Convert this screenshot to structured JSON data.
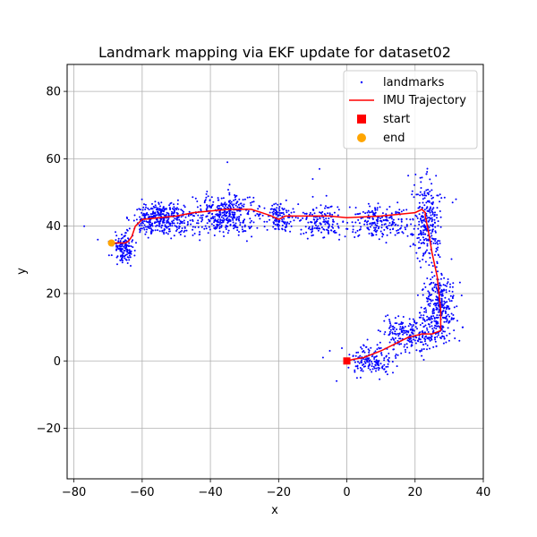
{
  "chart_data": {
    "type": "scatter",
    "title": "Landmark mapping via EKF update for dataset02",
    "xlabel": "x",
    "ylabel": "y",
    "xlim": [
      -82,
      40
    ],
    "ylim": [
      -35,
      88
    ],
    "xticks": [
      -80,
      -60,
      -40,
      -20,
      0,
      20,
      40
    ],
    "yticks": [
      -20,
      0,
      20,
      40,
      60,
      80
    ],
    "grid": true,
    "legend_position": "top-right",
    "series": [
      {
        "name": "landmarks",
        "kind": "scatter",
        "color": "#0000ff",
        "clusters": [
          {
            "x": [
              -69,
              -62
            ],
            "y": [
              29,
              38
            ],
            "count": 140
          },
          {
            "x": [
              -63,
              -45
            ],
            "y": [
              37,
              47
            ],
            "count": 380
          },
          {
            "x": [
              -45,
              -25
            ],
            "y": [
              37,
              50
            ],
            "count": 360
          },
          {
            "x": [
              -25,
              -15
            ],
            "y": [
              38,
              47
            ],
            "count": 120
          },
          {
            "x": [
              -15,
              0
            ],
            "y": [
              36,
              47
            ],
            "count": 150
          },
          {
            "x": [
              0,
              20
            ],
            "y": [
              36,
              47
            ],
            "count": 200
          },
          {
            "x": [
              19,
              28
            ],
            "y": [
              28,
              55
            ],
            "count": 260
          },
          {
            "x": [
              22,
              32
            ],
            "y": [
              5,
              28
            ],
            "count": 300
          },
          {
            "x": [
              10,
              28
            ],
            "y": [
              2,
              14
            ],
            "count": 230
          },
          {
            "x": [
              0,
              14
            ],
            "y": [
              -5,
              5
            ],
            "count": 150
          }
        ],
        "outliers": [
          [
            -77,
            40
          ],
          [
            -35,
            59
          ],
          [
            -8,
            57
          ],
          [
            -10,
            54
          ],
          [
            -6,
            49
          ],
          [
            18,
            55
          ],
          [
            31,
            47
          ],
          [
            32,
            48
          ],
          [
            34,
            10
          ],
          [
            -5,
            3
          ],
          [
            -7,
            1
          ],
          [
            -3,
            -6
          ],
          [
            33,
            6
          ],
          [
            30,
            6
          ],
          [
            -73,
            36
          ],
          [
            -66,
            30
          ]
        ]
      },
      {
        "name": "IMU Trajectory",
        "kind": "line",
        "color": "#ff0000",
        "x": [
          0,
          2,
          5,
          10,
          14,
          18,
          22,
          25,
          27.5,
          27.5,
          26.5,
          25,
          24,
          23,
          23,
          22,
          20,
          10,
          0,
          -5,
          -10,
          -15,
          -18,
          -20,
          -22,
          -25,
          -28,
          -30,
          -35,
          -40,
          -45,
          -50,
          -55,
          -60,
          -62,
          -63,
          -64,
          -65,
          -67,
          -69
        ],
        "y": [
          0,
          0.5,
          1,
          3,
          5,
          7,
          8,
          8,
          9,
          15,
          25,
          32,
          38,
          43,
          44,
          45,
          44,
          43,
          42.5,
          43,
          43,
          43,
          43,
          42,
          43,
          44,
          45,
          45,
          45,
          44.5,
          44,
          43,
          42.5,
          42,
          40,
          37,
          35.5,
          35,
          35,
          35
        ]
      },
      {
        "name": "start",
        "kind": "marker",
        "shape": "square",
        "color": "#ff0000",
        "x": [
          0
        ],
        "y": [
          0
        ]
      },
      {
        "name": "end",
        "kind": "marker",
        "shape": "circle",
        "color": "#ffa500",
        "x": [
          -69
        ],
        "y": [
          35
        ]
      }
    ]
  }
}
